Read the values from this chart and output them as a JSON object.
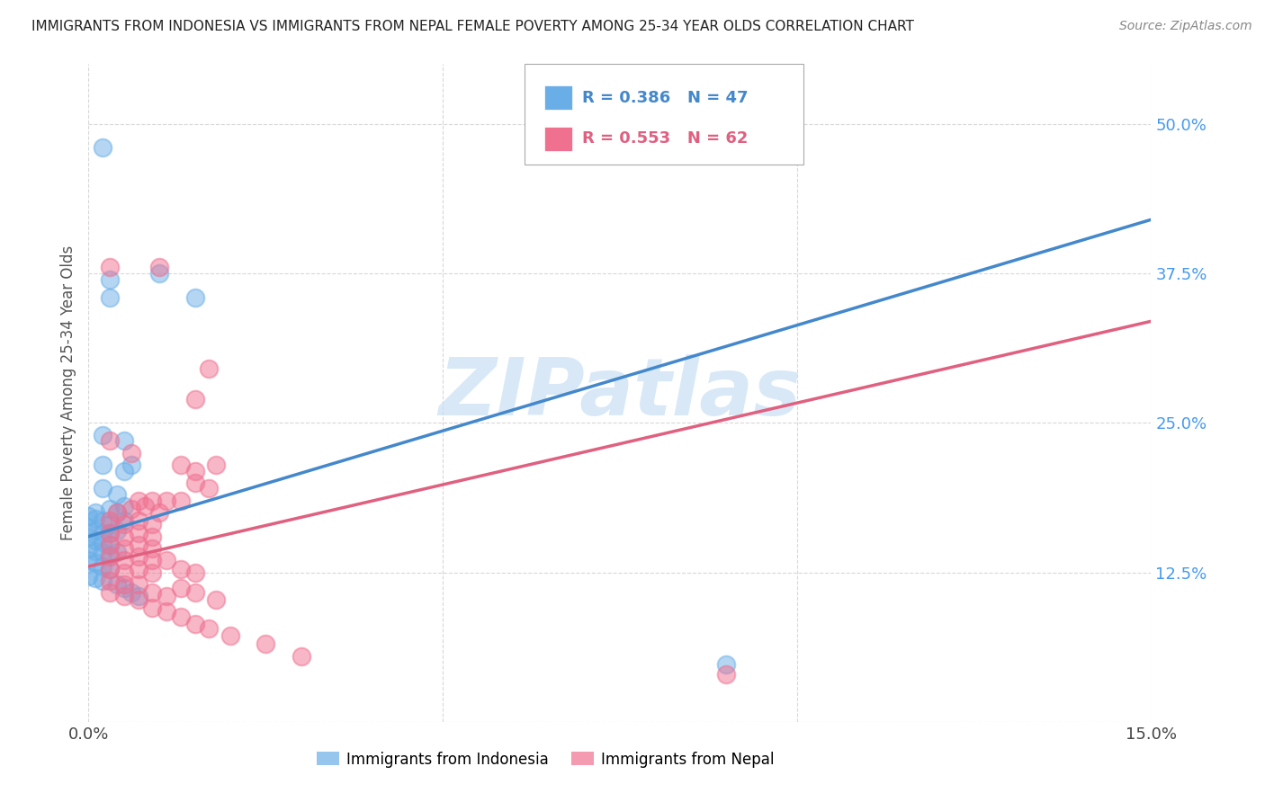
{
  "title": "IMMIGRANTS FROM INDONESIA VS IMMIGRANTS FROM NEPAL FEMALE POVERTY AMONG 25-34 YEAR OLDS CORRELATION CHART",
  "source": "Source: ZipAtlas.com",
  "ylabel": "Female Poverty Among 25-34 Year Olds",
  "xlim": [
    0.0,
    0.15
  ],
  "ylim": [
    0.0,
    0.55
  ],
  "xticks": [
    0.0,
    0.15
  ],
  "xticklabels": [
    "0.0%",
    "15.0%"
  ],
  "yticks": [
    0.0,
    0.125,
    0.25,
    0.375,
    0.5
  ],
  "yticklabels": [
    "",
    "12.5%",
    "25.0%",
    "37.5%",
    "50.0%"
  ],
  "indonesia_color": "#6aaee8",
  "nepal_color": "#f07090",
  "indonesia_line_color": "#4488cc",
  "nepal_line_color": "#e06080",
  "indonesia_R": 0.386,
  "indonesia_N": 47,
  "nepal_R": 0.553,
  "nepal_N": 62,
  "watermark": "ZIPatlas",
  "background_color": "#ffffff",
  "grid_color": "#d8d8d8",
  "ytick_color": "#4499ee",
  "indonesia_scatter": [
    [
      0.002,
      0.48
    ],
    [
      0.01,
      0.375
    ],
    [
      0.015,
      0.355
    ],
    [
      0.003,
      0.37
    ],
    [
      0.003,
      0.355
    ],
    [
      0.002,
      0.24
    ],
    [
      0.005,
      0.235
    ],
    [
      0.002,
      0.215
    ],
    [
      0.005,
      0.21
    ],
    [
      0.006,
      0.215
    ],
    [
      0.002,
      0.195
    ],
    [
      0.004,
      0.19
    ],
    [
      0.001,
      0.175
    ],
    [
      0.003,
      0.178
    ],
    [
      0.004,
      0.175
    ],
    [
      0.005,
      0.18
    ],
    [
      0.0,
      0.172
    ],
    [
      0.001,
      0.17
    ],
    [
      0.002,
      0.168
    ],
    [
      0.003,
      0.165
    ],
    [
      0.005,
      0.168
    ],
    [
      0.0,
      0.162
    ],
    [
      0.001,
      0.16
    ],
    [
      0.002,
      0.158
    ],
    [
      0.003,
      0.158
    ],
    [
      0.004,
      0.16
    ],
    [
      0.0,
      0.155
    ],
    [
      0.001,
      0.152
    ],
    [
      0.002,
      0.15
    ],
    [
      0.003,
      0.148
    ],
    [
      0.0,
      0.145
    ],
    [
      0.001,
      0.143
    ],
    [
      0.002,
      0.142
    ],
    [
      0.003,
      0.14
    ],
    [
      0.004,
      0.142
    ],
    [
      0.0,
      0.135
    ],
    [
      0.001,
      0.133
    ],
    [
      0.002,
      0.13
    ],
    [
      0.003,
      0.128
    ],
    [
      0.0,
      0.122
    ],
    [
      0.001,
      0.12
    ],
    [
      0.002,
      0.118
    ],
    [
      0.004,
      0.115
    ],
    [
      0.005,
      0.112
    ],
    [
      0.006,
      0.108
    ],
    [
      0.007,
      0.105
    ],
    [
      0.09,
      0.048
    ]
  ],
  "nepal_scatter": [
    [
      0.003,
      0.38
    ],
    [
      0.01,
      0.38
    ],
    [
      0.017,
      0.295
    ],
    [
      0.015,
      0.27
    ],
    [
      0.013,
      0.215
    ],
    [
      0.015,
      0.21
    ],
    [
      0.018,
      0.215
    ],
    [
      0.015,
      0.2
    ],
    [
      0.017,
      0.195
    ],
    [
      0.003,
      0.235
    ],
    [
      0.006,
      0.225
    ],
    [
      0.007,
      0.185
    ],
    [
      0.009,
      0.185
    ],
    [
      0.011,
      0.185
    ],
    [
      0.013,
      0.185
    ],
    [
      0.004,
      0.175
    ],
    [
      0.006,
      0.178
    ],
    [
      0.008,
      0.18
    ],
    [
      0.01,
      0.175
    ],
    [
      0.003,
      0.168
    ],
    [
      0.005,
      0.165
    ],
    [
      0.007,
      0.168
    ],
    [
      0.009,
      0.165
    ],
    [
      0.003,
      0.158
    ],
    [
      0.005,
      0.155
    ],
    [
      0.007,
      0.158
    ],
    [
      0.009,
      0.155
    ],
    [
      0.003,
      0.148
    ],
    [
      0.005,
      0.145
    ],
    [
      0.007,
      0.148
    ],
    [
      0.009,
      0.145
    ],
    [
      0.003,
      0.138
    ],
    [
      0.005,
      0.135
    ],
    [
      0.007,
      0.138
    ],
    [
      0.009,
      0.135
    ],
    [
      0.003,
      0.128
    ],
    [
      0.005,
      0.125
    ],
    [
      0.007,
      0.128
    ],
    [
      0.009,
      0.125
    ],
    [
      0.011,
      0.135
    ],
    [
      0.013,
      0.128
    ],
    [
      0.015,
      0.125
    ],
    [
      0.003,
      0.118
    ],
    [
      0.005,
      0.115
    ],
    [
      0.007,
      0.115
    ],
    [
      0.003,
      0.108
    ],
    [
      0.005,
      0.105
    ],
    [
      0.007,
      0.102
    ],
    [
      0.009,
      0.108
    ],
    [
      0.011,
      0.105
    ],
    [
      0.013,
      0.112
    ],
    [
      0.015,
      0.108
    ],
    [
      0.018,
      0.102
    ],
    [
      0.009,
      0.095
    ],
    [
      0.011,
      0.092
    ],
    [
      0.013,
      0.088
    ],
    [
      0.015,
      0.082
    ],
    [
      0.017,
      0.078
    ],
    [
      0.02,
      0.072
    ],
    [
      0.025,
      0.065
    ],
    [
      0.03,
      0.055
    ],
    [
      0.09,
      0.04
    ]
  ],
  "indo_line": [
    [
      0.0,
      0.155
    ],
    [
      0.15,
      0.42
    ]
  ],
  "nepal_line": [
    [
      0.0,
      0.13
    ],
    [
      0.15,
      0.335
    ]
  ]
}
